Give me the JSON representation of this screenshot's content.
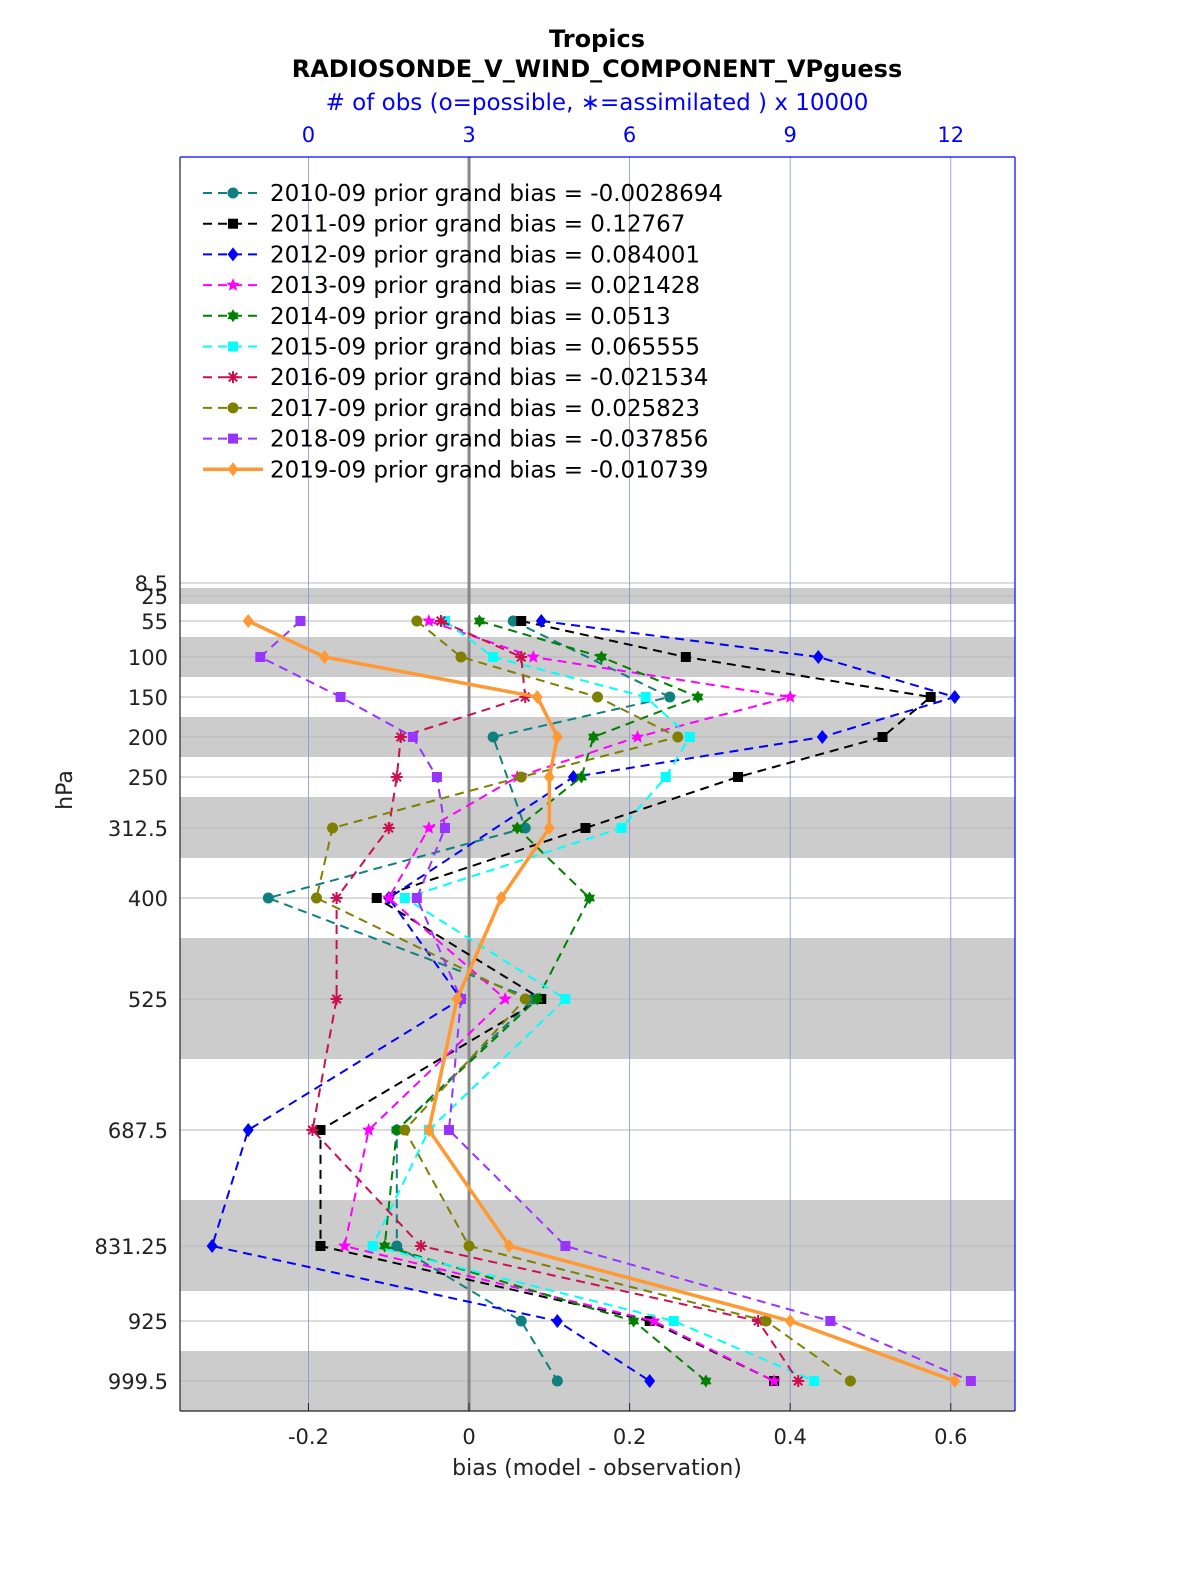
{
  "chart_data": {
    "type": "line",
    "title": "Tropics",
    "subtitle": "RADIOSONDE_V_WIND_COMPONENT_VPguess",
    "top_axis_label": "# of obs (o=possible, ∗=assimilated ) x 10000",
    "top_ticks": [
      "0",
      "3",
      "6",
      "9",
      "12"
    ],
    "top_tick_values": [
      0,
      3,
      6,
      9,
      12
    ],
    "xlabel": "bias (model - observation)",
    "ylabel": "hPa",
    "xlim": [
      -0.36,
      0.68
    ],
    "x_ticks": [
      "-0.2",
      "0",
      "0.2",
      "0.4",
      "0.6"
    ],
    "x_tick_values": [
      -0.2,
      0,
      0.2,
      0.4,
      0.6
    ],
    "levels": [
      8.5,
      25,
      55,
      100,
      150,
      200,
      250,
      312.5,
      400,
      525,
      687.5,
      831.25,
      925,
      999.5
    ],
    "level_labels": [
      "8.5",
      "25",
      "55",
      "100",
      "150",
      "200",
      "250",
      "312.5",
      "400",
      "525",
      "687.5",
      "831.25",
      "925",
      "999.5"
    ],
    "legend_position": "top-left",
    "series": [
      {
        "name": "2010-09 prior grand bias = -0.0028694",
        "color": "#0f7f7f",
        "marker": "circle",
        "style": "dashed",
        "points": [
          [
            0.055,
            55
          ],
          [
            0.25,
            150
          ],
          [
            0.03,
            200
          ],
          [
            0.07,
            312.5
          ],
          [
            -0.25,
            400
          ],
          [
            0.08,
            525
          ],
          [
            -0.09,
            687.5
          ],
          [
            -0.09,
            831.25
          ],
          [
            0.065,
            925
          ],
          [
            0.11,
            999.5
          ]
        ]
      },
      {
        "name": "2011-09 prior grand bias = 0.12767",
        "color": "#000000",
        "marker": "square",
        "style": "dashed",
        "points": [
          [
            0.065,
            55
          ],
          [
            0.27,
            100
          ],
          [
            0.575,
            150
          ],
          [
            0.515,
            200
          ],
          [
            0.335,
            250
          ],
          [
            0.145,
            312.5
          ],
          [
            -0.115,
            400
          ],
          [
            0.09,
            525
          ],
          [
            -0.185,
            687.5
          ],
          [
            -0.185,
            831.25
          ],
          [
            0.225,
            925
          ],
          [
            0.38,
            999.5
          ]
        ]
      },
      {
        "name": "2012-09 prior grand bias = 0.084001",
        "color": "#0000ff",
        "marker": "diamond",
        "style": "dashed",
        "points": [
          [
            0.09,
            55
          ],
          [
            0.435,
            100
          ],
          [
            0.605,
            150
          ],
          [
            0.44,
            200
          ],
          [
            0.13,
            250
          ],
          [
            -0.1,
            400
          ],
          [
            -0.01,
            525
          ],
          [
            -0.275,
            687.5
          ],
          [
            -0.32,
            831.25
          ],
          [
            0.11,
            925
          ],
          [
            0.225,
            999.5
          ]
        ]
      },
      {
        "name": "2013-09 prior grand bias = 0.021428",
        "color": "#ff00ff",
        "marker": "star",
        "style": "dashed",
        "points": [
          [
            -0.05,
            55
          ],
          [
            0.08,
            100
          ],
          [
            0.4,
            150
          ],
          [
            0.21,
            200
          ],
          [
            0.06,
            250
          ],
          [
            -0.05,
            312.5
          ],
          [
            -0.1,
            400
          ],
          [
            0.045,
            525
          ],
          [
            -0.125,
            687.5
          ],
          [
            -0.155,
            831.25
          ],
          [
            0.23,
            925
          ],
          [
            0.38,
            999.5
          ]
        ]
      },
      {
        "name": "2014-09 prior grand bias = 0.0513",
        "color": "#007f00",
        "marker": "hexagram",
        "style": "dashed",
        "points": [
          [
            0.013,
            55
          ],
          [
            0.165,
            100
          ],
          [
            0.285,
            150
          ],
          [
            0.155,
            200
          ],
          [
            0.14,
            250
          ],
          [
            0.06,
            312.5
          ],
          [
            0.15,
            400
          ],
          [
            0.085,
            525
          ],
          [
            -0.09,
            687.5
          ],
          [
            -0.105,
            831.25
          ],
          [
            0.205,
            925
          ],
          [
            0.295,
            999.5
          ]
        ]
      },
      {
        "name": "2015-09 prior grand bias = 0.065555",
        "color": "#00ffff",
        "marker": "square",
        "style": "dashed",
        "points": [
          [
            -0.03,
            55
          ],
          [
            0.03,
            100
          ],
          [
            0.22,
            150
          ],
          [
            0.275,
            200
          ],
          [
            0.245,
            250
          ],
          [
            0.19,
            312.5
          ],
          [
            -0.08,
            400
          ],
          [
            0.12,
            525
          ],
          [
            -0.05,
            687.5
          ],
          [
            -0.12,
            831.25
          ],
          [
            0.255,
            925
          ],
          [
            0.43,
            999.5
          ]
        ]
      },
      {
        "name": "2016-09 prior grand bias = -0.021534",
        "color": "#cc0f4f",
        "marker": "asterisk",
        "style": "dashed",
        "points": [
          [
            -0.035,
            55
          ],
          [
            0.065,
            100
          ],
          [
            0.07,
            150
          ],
          [
            -0.085,
            200
          ],
          [
            -0.09,
            250
          ],
          [
            -0.1,
            312.5
          ],
          [
            -0.165,
            400
          ],
          [
            -0.165,
            525
          ],
          [
            -0.195,
            687.5
          ],
          [
            -0.06,
            831.25
          ],
          [
            0.36,
            925
          ],
          [
            0.41,
            999.5
          ]
        ]
      },
      {
        "name": "2017-09 prior grand bias = 0.025823",
        "color": "#7f7f00",
        "marker": "circle",
        "style": "dashed",
        "points": [
          [
            -0.065,
            55
          ],
          [
            -0.01,
            100
          ],
          [
            0.16,
            150
          ],
          [
            0.26,
            200
          ],
          [
            0.065,
            250
          ],
          [
            -0.17,
            312.5
          ],
          [
            -0.19,
            400
          ],
          [
            0.07,
            525
          ],
          [
            -0.08,
            687.5
          ],
          [
            0.0,
            831.25
          ],
          [
            0.37,
            925
          ],
          [
            0.475,
            999.5
          ]
        ]
      },
      {
        "name": "2018-09 prior grand bias = -0.037856",
        "color": "#9933ff",
        "marker": "square",
        "style": "dashed",
        "points": [
          [
            -0.21,
            55
          ],
          [
            -0.26,
            100
          ],
          [
            -0.16,
            150
          ],
          [
            -0.07,
            200
          ],
          [
            -0.04,
            250
          ],
          [
            -0.03,
            312.5
          ],
          [
            -0.065,
            400
          ],
          [
            -0.01,
            525
          ],
          [
            -0.025,
            687.5
          ],
          [
            0.12,
            831.25
          ],
          [
            0.45,
            925
          ],
          [
            0.625,
            999.5
          ]
        ]
      },
      {
        "name": "2019-09 prior grand bias = -0.010739",
        "color": "#ff9933",
        "marker": "diamond",
        "style": "solid",
        "points": [
          [
            -0.275,
            55
          ],
          [
            -0.18,
            100
          ],
          [
            0.085,
            150
          ],
          [
            0.11,
            200
          ],
          [
            0.1,
            250
          ],
          [
            0.1,
            312.5
          ],
          [
            0.04,
            400
          ],
          [
            -0.015,
            525
          ],
          [
            -0.05,
            687.5
          ],
          [
            0.05,
            831.25
          ],
          [
            0.4,
            925
          ],
          [
            0.605,
            999.5
          ]
        ]
      }
    ]
  }
}
